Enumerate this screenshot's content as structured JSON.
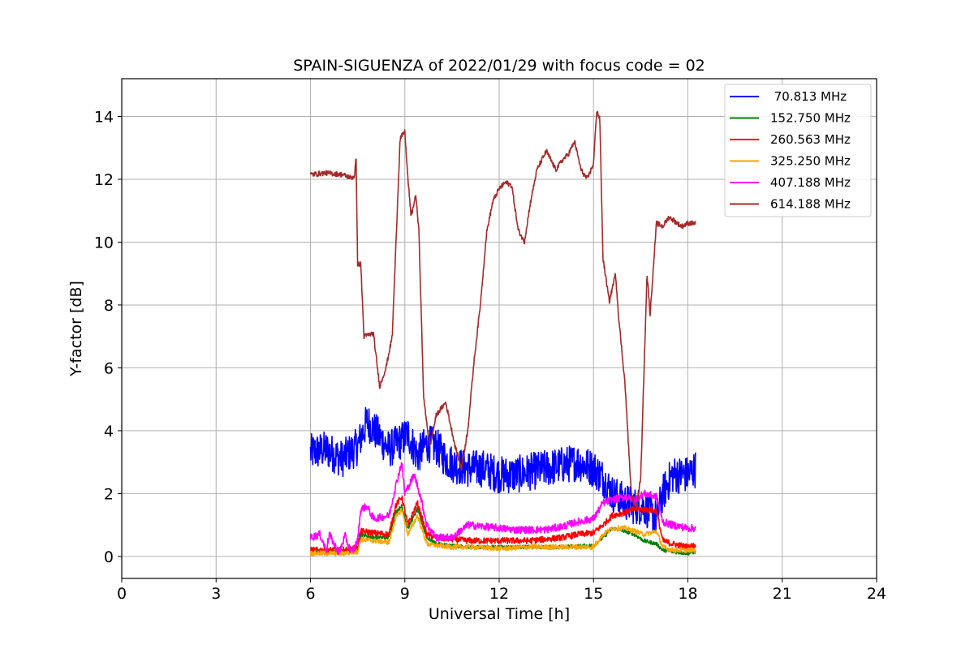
{
  "chart_data": {
    "type": "line",
    "title": "SPAIN-SIGUENZA of 2022/01/29 with focus code = 02",
    "xlabel": "Universal Time [h]",
    "ylabel": "Y-factor [dB]",
    "xlim": [
      0,
      24
    ],
    "ylim": [
      -0.7,
      15.2
    ],
    "xticks": [
      0,
      3,
      6,
      9,
      12,
      15,
      18,
      21,
      24
    ],
    "yticks": [
      0,
      2,
      4,
      6,
      8,
      10,
      12,
      14
    ],
    "grid": true,
    "legend_position": "top-right",
    "series": [
      {
        "name": " 70.813 MHz",
        "color": "#0000ff",
        "noise": 0.6,
        "points": [
          [
            6.0,
            3.3
          ],
          [
            6.5,
            3.4
          ],
          [
            7.0,
            3.1
          ],
          [
            7.5,
            3.5
          ],
          [
            7.8,
            4.3
          ],
          [
            8.2,
            3.8
          ],
          [
            8.5,
            3.4
          ],
          [
            8.9,
            3.7
          ],
          [
            9.1,
            3.9
          ],
          [
            9.4,
            3.2
          ],
          [
            9.7,
            3.6
          ],
          [
            10.0,
            3.5
          ],
          [
            10.3,
            3.1
          ],
          [
            10.6,
            2.9
          ],
          [
            11.0,
            2.8
          ],
          [
            11.5,
            2.8
          ],
          [
            12.0,
            2.6
          ],
          [
            12.5,
            2.6
          ],
          [
            13.0,
            2.7
          ],
          [
            13.5,
            2.8
          ],
          [
            14.0,
            2.9
          ],
          [
            14.5,
            3.0
          ],
          [
            15.0,
            2.8
          ],
          [
            15.3,
            2.5
          ],
          [
            15.6,
            2.0
          ],
          [
            15.9,
            1.8
          ],
          [
            16.3,
            1.6
          ],
          [
            16.6,
            1.6
          ],
          [
            17.0,
            1.2
          ],
          [
            17.2,
            2.0
          ],
          [
            17.5,
            2.6
          ],
          [
            18.0,
            2.6
          ],
          [
            18.25,
            2.8
          ]
        ]
      },
      {
        "name": "152.750 MHz",
        "color": "#008000",
        "noise": 0.06,
        "points": [
          [
            6.0,
            0.15
          ],
          [
            6.5,
            0.15
          ],
          [
            7.0,
            0.15
          ],
          [
            7.5,
            0.2
          ],
          [
            7.6,
            0.7
          ],
          [
            8.0,
            0.6
          ],
          [
            8.5,
            0.6
          ],
          [
            8.7,
            1.4
          ],
          [
            8.9,
            1.6
          ],
          [
            9.1,
            0.9
          ],
          [
            9.4,
            1.5
          ],
          [
            9.7,
            0.6
          ],
          [
            10.0,
            0.4
          ],
          [
            10.5,
            0.35
          ],
          [
            11.0,
            0.3
          ],
          [
            12.0,
            0.3
          ],
          [
            13.0,
            0.3
          ],
          [
            14.0,
            0.3
          ],
          [
            15.0,
            0.35
          ],
          [
            15.3,
            0.6
          ],
          [
            15.6,
            0.9
          ],
          [
            16.0,
            0.8
          ],
          [
            16.3,
            0.7
          ],
          [
            16.6,
            0.5
          ],
          [
            17.0,
            0.4
          ],
          [
            17.2,
            0.2
          ],
          [
            17.5,
            0.15
          ],
          [
            18.0,
            0.1
          ],
          [
            18.25,
            0.15
          ]
        ]
      },
      {
        "name": "260.563 MHz",
        "color": "#ff0000",
        "noise": 0.1,
        "points": [
          [
            6.0,
            0.2
          ],
          [
            6.5,
            0.2
          ],
          [
            7.0,
            0.2
          ],
          [
            7.5,
            0.25
          ],
          [
            7.6,
            0.8
          ],
          [
            8.0,
            0.75
          ],
          [
            8.5,
            0.7
          ],
          [
            8.7,
            1.6
          ],
          [
            8.9,
            1.9
          ],
          [
            9.1,
            1.0
          ],
          [
            9.4,
            1.7
          ],
          [
            9.7,
            0.7
          ],
          [
            10.0,
            0.6
          ],
          [
            10.5,
            0.55
          ],
          [
            11.0,
            0.5
          ],
          [
            12.0,
            0.5
          ],
          [
            13.0,
            0.5
          ],
          [
            14.0,
            0.6
          ],
          [
            14.5,
            0.7
          ],
          [
            15.0,
            0.75
          ],
          [
            15.3,
            1.0
          ],
          [
            15.6,
            1.3
          ],
          [
            16.0,
            1.4
          ],
          [
            16.3,
            1.5
          ],
          [
            16.6,
            1.5
          ],
          [
            17.0,
            1.45
          ],
          [
            17.2,
            0.5
          ],
          [
            17.5,
            0.4
          ],
          [
            18.0,
            0.3
          ],
          [
            18.25,
            0.35
          ]
        ]
      },
      {
        "name": "325.250 MHz",
        "color": "#ffa500",
        "noise": 0.08,
        "points": [
          [
            6.0,
            0.1
          ],
          [
            6.5,
            0.1
          ],
          [
            7.0,
            0.1
          ],
          [
            7.5,
            0.15
          ],
          [
            7.6,
            0.55
          ],
          [
            8.0,
            0.5
          ],
          [
            8.5,
            0.45
          ],
          [
            8.7,
            1.2
          ],
          [
            8.9,
            1.5
          ],
          [
            9.1,
            0.7
          ],
          [
            9.4,
            1.3
          ],
          [
            9.7,
            0.4
          ],
          [
            10.0,
            0.35
          ],
          [
            10.5,
            0.3
          ],
          [
            11.0,
            0.3
          ],
          [
            12.0,
            0.25
          ],
          [
            13.0,
            0.3
          ],
          [
            14.0,
            0.3
          ],
          [
            15.0,
            0.3
          ],
          [
            15.3,
            0.7
          ],
          [
            15.6,
            0.9
          ],
          [
            16.0,
            0.9
          ],
          [
            16.3,
            0.8
          ],
          [
            16.6,
            0.7
          ],
          [
            17.0,
            0.8
          ],
          [
            17.2,
            0.3
          ],
          [
            17.5,
            0.2
          ],
          [
            18.0,
            0.2
          ],
          [
            18.25,
            0.2
          ]
        ]
      },
      {
        "name": "407.188 MHz",
        "color": "#ff00ff",
        "noise": 0.12,
        "points": [
          [
            6.0,
            0.6
          ],
          [
            6.3,
            0.7
          ],
          [
            6.5,
            0.2
          ],
          [
            6.6,
            0.7
          ],
          [
            6.9,
            0.1
          ],
          [
            7.1,
            0.65
          ],
          [
            7.3,
            0.1
          ],
          [
            7.5,
            0.5
          ],
          [
            7.6,
            1.5
          ],
          [
            7.8,
            1.6
          ],
          [
            8.0,
            1.2
          ],
          [
            8.5,
            1.3
          ],
          [
            8.7,
            2.2
          ],
          [
            8.9,
            3.0
          ],
          [
            9.0,
            2.0
          ],
          [
            9.3,
            2.6
          ],
          [
            9.5,
            1.9
          ],
          [
            9.7,
            1.0
          ],
          [
            10.0,
            0.6
          ],
          [
            10.5,
            0.6
          ],
          [
            11.0,
            1.0
          ],
          [
            11.5,
            0.95
          ],
          [
            12.0,
            0.9
          ],
          [
            12.5,
            0.85
          ],
          [
            13.0,
            0.85
          ],
          [
            13.5,
            0.85
          ],
          [
            14.0,
            0.95
          ],
          [
            14.5,
            1.1
          ],
          [
            15.0,
            1.2
          ],
          [
            15.3,
            1.7
          ],
          [
            15.6,
            1.8
          ],
          [
            16.0,
            1.9
          ],
          [
            16.3,
            1.8
          ],
          [
            16.6,
            2.0
          ],
          [
            17.0,
            1.9
          ],
          [
            17.2,
            1.1
          ],
          [
            17.5,
            1.0
          ],
          [
            18.0,
            0.9
          ],
          [
            18.25,
            0.9
          ]
        ]
      },
      {
        "name": "614.188 MHz",
        "color": "#a52a2a",
        "noise": 0.08,
        "points": [
          [
            6.0,
            12.15
          ],
          [
            6.5,
            12.2
          ],
          [
            7.0,
            12.15
          ],
          [
            7.3,
            12.05
          ],
          [
            7.4,
            12.1
          ],
          [
            7.45,
            12.7
          ],
          [
            7.5,
            9.3
          ],
          [
            7.6,
            9.3
          ],
          [
            7.7,
            7.0
          ],
          [
            8.0,
            7.1
          ],
          [
            8.2,
            5.4
          ],
          [
            8.4,
            6.0
          ],
          [
            8.6,
            7.0
          ],
          [
            8.7,
            9.5
          ],
          [
            8.85,
            13.3
          ],
          [
            9.0,
            13.5
          ],
          [
            9.1,
            12.0
          ],
          [
            9.2,
            10.8
          ],
          [
            9.35,
            11.5
          ],
          [
            9.45,
            10.3
          ],
          [
            9.6,
            5.0
          ],
          [
            9.8,
            3.5
          ],
          [
            10.0,
            4.5
          ],
          [
            10.3,
            4.9
          ],
          [
            10.6,
            3.5
          ],
          [
            10.8,
            2.8
          ],
          [
            11.0,
            4.0
          ],
          [
            11.2,
            6.2
          ],
          [
            11.4,
            8.0
          ],
          [
            11.6,
            10.3
          ],
          [
            11.8,
            11.3
          ],
          [
            12.0,
            11.7
          ],
          [
            12.2,
            11.9
          ],
          [
            12.4,
            11.8
          ],
          [
            12.6,
            10.4
          ],
          [
            12.8,
            10.0
          ],
          [
            13.0,
            11.3
          ],
          [
            13.2,
            12.3
          ],
          [
            13.5,
            12.9
          ],
          [
            13.8,
            12.3
          ],
          [
            14.0,
            12.6
          ],
          [
            14.2,
            12.8
          ],
          [
            14.4,
            13.2
          ],
          [
            14.6,
            12.3
          ],
          [
            14.8,
            12.0
          ],
          [
            15.0,
            12.5
          ],
          [
            15.1,
            14.2
          ],
          [
            15.2,
            13.9
          ],
          [
            15.3,
            9.5
          ],
          [
            15.5,
            8.1
          ],
          [
            15.7,
            9.0
          ],
          [
            15.8,
            7.6
          ],
          [
            16.0,
            5.5
          ],
          [
            16.2,
            2.0
          ],
          [
            16.35,
            1.5
          ],
          [
            16.5,
            2.5
          ],
          [
            16.7,
            9.0
          ],
          [
            16.8,
            7.7
          ],
          [
            17.0,
            10.6
          ],
          [
            17.2,
            10.5
          ],
          [
            17.4,
            10.8
          ],
          [
            17.8,
            10.5
          ],
          [
            18.0,
            10.6
          ],
          [
            18.25,
            10.6
          ]
        ]
      }
    ]
  }
}
